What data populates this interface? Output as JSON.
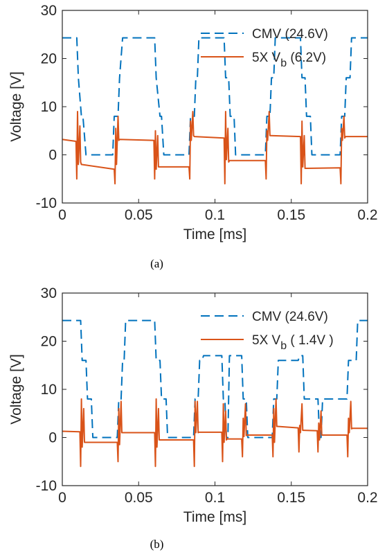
{
  "colors": {
    "cmv": "#0072BD",
    "vb": "#D95319",
    "axis": "#262626"
  },
  "chart_data": [
    {
      "type": "line",
      "caption": "(a)",
      "xlabel": "Time [ms]",
      "ylabel": "Voltage [V]",
      "xlim": [
        0,
        0.2
      ],
      "ylim": [
        -10,
        30
      ],
      "xticks": [
        "0",
        "0.05",
        "0.1",
        "0.15",
        "0.2"
      ],
      "yticks": [
        "-10",
        "0",
        "10",
        "20",
        "30"
      ],
      "legend": {
        "location": "top-right",
        "entries": [
          "CMV (24.6V)",
          "5X V_b (6.2V)"
        ]
      },
      "series": [
        {
          "name": "CMV (24.6V)",
          "style": "dashed",
          "x": [
            0,
            0.0095,
            0.0105,
            0.0125,
            0.0135,
            0.0155,
            0.0165,
            0.033,
            0.034,
            0.0365,
            0.0375,
            0.0395,
            0.0405,
            0.0605,
            0.0615,
            0.064,
            0.065,
            0.0665,
            0.0675,
            0.083,
            0.084,
            0.0865,
            0.0875,
            0.0885,
            0.0895,
            0.106,
            0.107,
            0.109,
            0.11,
            0.1125,
            0.1135,
            0.133,
            0.134,
            0.136,
            0.137,
            0.1385,
            0.1395,
            0.156,
            0.157,
            0.159,
            0.16,
            0.1625,
            0.1635,
            0.182,
            0.183,
            0.185,
            0.186,
            0.1885,
            0.1895,
            0.2
          ],
          "y": [
            24.3,
            24.3,
            16,
            8,
            8,
            0,
            0,
            0,
            8,
            8,
            16,
            24.3,
            24.3,
            24.3,
            16,
            8,
            8,
            0,
            0,
            0,
            8,
            8,
            16,
            16,
            24.3,
            24.3,
            16,
            16,
            8,
            8,
            0,
            0,
            8,
            8,
            16,
            16,
            24.3,
            24.3,
            16,
            16,
            8,
            8,
            0,
            0,
            8,
            8,
            16,
            16,
            24.3,
            24.3
          ]
        },
        {
          "name": "5X V_b (6.2V)",
          "style": "solid",
          "x": [
            0,
            0.009,
            0.0095,
            0.01,
            0.0105,
            0.0115,
            0.012,
            0.0125,
            0.034,
            0.0345,
            0.035,
            0.0355,
            0.0365,
            0.037,
            0.0375,
            0.06,
            0.0605,
            0.061,
            0.0615,
            0.0625,
            0.063,
            0.0635,
            0.083,
            0.0835,
            0.084,
            0.0845,
            0.0855,
            0.086,
            0.0865,
            0.106,
            0.1065,
            0.107,
            0.1075,
            0.1085,
            0.109,
            0.1095,
            0.133,
            0.1335,
            0.134,
            0.1345,
            0.1355,
            0.136,
            0.1365,
            0.156,
            0.1565,
            0.157,
            0.1575,
            0.1585,
            0.159,
            0.1595,
            0.182,
            0.1825,
            0.183,
            0.1835,
            0.1845,
            0.185,
            0.1855,
            0.2
          ],
          "y": [
            3.2,
            2.8,
            -5,
            9,
            -2,
            6,
            -1.5,
            -2,
            -3,
            -6,
            5.5,
            -2,
            8,
            3,
            3.2,
            3,
            -5,
            5,
            -3,
            4,
            -2.5,
            -2.5,
            -2.5,
            -5,
            7,
            3,
            9,
            4,
            3.8,
            3.5,
            -6,
            9,
            -1,
            5.5,
            -1.5,
            -1.2,
            -1.2,
            -5,
            5,
            3,
            9,
            4,
            4,
            3.8,
            -6,
            7,
            -2.5,
            4,
            -2.8,
            -2.8,
            -2.7,
            -6,
            5.5,
            3,
            8,
            3.5,
            3.8,
            3.8
          ]
        }
      ]
    },
    {
      "type": "line",
      "caption": "(b)",
      "xlabel": "Time [ms]",
      "ylabel": "Voltage [V]",
      "xlim": [
        0,
        0.2
      ],
      "ylim": [
        -10,
        30
      ],
      "xticks": [
        "0",
        "0.05",
        "0.1",
        "0.15",
        "0.2"
      ],
      "yticks": [
        "-10",
        "0",
        "10",
        "20",
        "30"
      ],
      "legend": {
        "location": "top-right",
        "entries": [
          "CMV (24.6V)",
          "5X V_b ( 1.4V )"
        ]
      },
      "series": [
        {
          "name": "CMV (24.6V)",
          "style": "dashed",
          "x": [
            0,
            0.012,
            0.013,
            0.0155,
            0.0165,
            0.019,
            0.02,
            0.036,
            0.037,
            0.0385,
            0.0395,
            0.0405,
            0.0415,
            0.0605,
            0.0615,
            0.064,
            0.065,
            0.068,
            0.069,
            0.086,
            0.087,
            0.089,
            0.09,
            0.0915,
            0.0925,
            0.1045,
            0.1055,
            0.1065,
            0.1075,
            0.1085,
            0.1095,
            0.1175,
            0.1185,
            0.1205,
            0.1215,
            0.1375,
            0.1385,
            0.1405,
            0.1415,
            0.1545,
            0.1555,
            0.1575,
            0.1585,
            0.1675,
            0.1685,
            0.1695,
            0.1705,
            0.1865,
            0.1875,
            0.1925,
            0.1935,
            0.2
          ],
          "y": [
            24.3,
            24.3,
            16,
            16,
            8,
            8,
            0,
            0,
            8,
            8,
            16,
            16,
            24.3,
            24.3,
            16,
            16,
            8,
            8,
            0,
            0,
            8,
            8,
            16,
            16,
            17,
            17,
            8,
            8,
            0,
            0,
            17,
            17,
            8,
            8,
            0,
            0,
            8,
            8,
            16,
            16,
            17,
            17,
            8,
            8,
            0,
            0,
            8,
            8,
            16,
            16,
            24.3,
            24.3
          ]
        },
        {
          "name": "5X V_b ( 1.4V )",
          "style": "solid",
          "x": [
            0,
            0.0115,
            0.012,
            0.0125,
            0.013,
            0.014,
            0.0145,
            0.015,
            0.036,
            0.0365,
            0.037,
            0.0375,
            0.0385,
            0.039,
            0.0395,
            0.0605,
            0.061,
            0.0615,
            0.062,
            0.063,
            0.0635,
            0.064,
            0.086,
            0.0865,
            0.087,
            0.0875,
            0.0885,
            0.089,
            0.0895,
            0.1045,
            0.105,
            0.1055,
            0.106,
            0.107,
            0.1075,
            0.108,
            0.1175,
            0.118,
            0.1185,
            0.119,
            0.12,
            0.1205,
            0.121,
            0.1375,
            0.138,
            0.1385,
            0.139,
            0.14,
            0.1405,
            0.141,
            0.1545,
            0.155,
            0.1555,
            0.156,
            0.157,
            0.1575,
            0.158,
            0.167,
            0.1675,
            0.168,
            0.1685,
            0.1695,
            0.17,
            0.1705,
            0.1865,
            0.187,
            0.1875,
            0.188,
            0.189,
            0.1895,
            0.19,
            0.2
          ],
          "y": [
            1.3,
            1.2,
            -6,
            8,
            -2,
            6,
            -1,
            -1,
            -1,
            -5,
            6,
            -1.5,
            7.5,
            1,
            1,
            1,
            -6,
            8,
            -2,
            6,
            -0.5,
            -0.5,
            -0.5,
            -6,
            7.5,
            1,
            7.5,
            1,
            1.1,
            1.1,
            -5,
            7,
            -1,
            5.5,
            -0.5,
            -0.3,
            -0.3,
            -4,
            4,
            0.2,
            7,
            0.4,
            0.5,
            0.5,
            -4,
            6,
            -1,
            8,
            2.3,
            2.3,
            2,
            -3,
            2.5,
            1,
            7,
            1.5,
            1.5,
            1.4,
            -3,
            3,
            -0.5,
            5.5,
            0.5,
            0.5,
            0.5,
            -4,
            4,
            1,
            7.5,
            1.8,
            1.9,
            1.9
          ]
        }
      ]
    }
  ]
}
